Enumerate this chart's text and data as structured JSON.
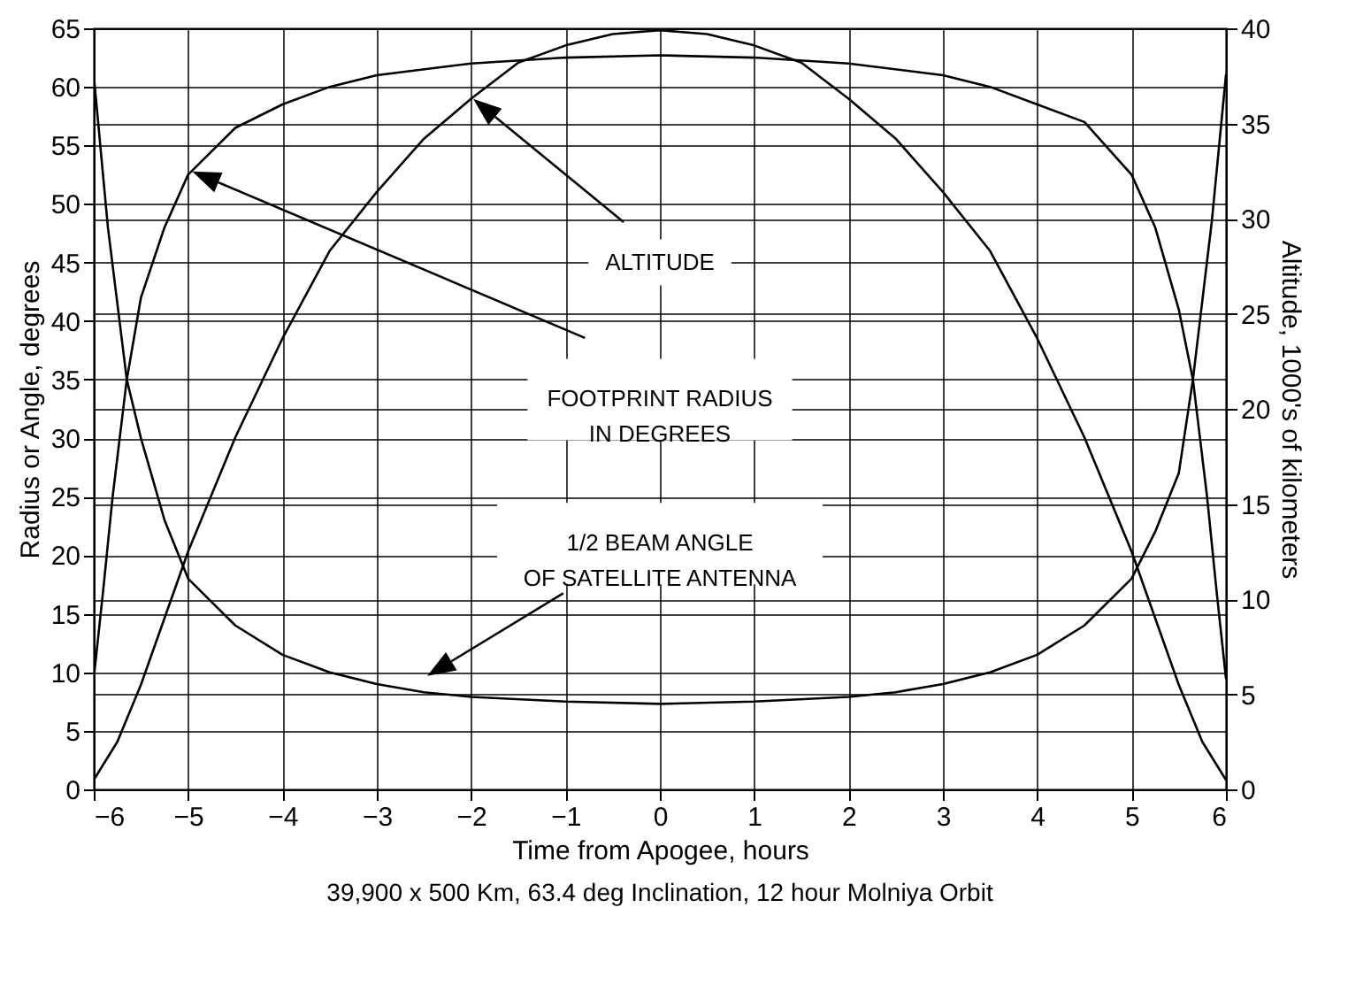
{
  "chart_data": {
    "type": "line",
    "xlabel": "Time from Apogee, hours",
    "ylabel": "Radius or Angle, degrees",
    "y2label": "Altitude, 1000's of kilometers",
    "xlim": [
      -6,
      6
    ],
    "xticks": [
      -6,
      -5,
      -4,
      -3,
      -2,
      -1,
      0,
      1,
      2,
      3,
      4,
      5,
      6
    ],
    "ylim": [
      0,
      65
    ],
    "yticks": [
      0,
      5,
      10,
      15,
      20,
      25,
      30,
      35,
      40,
      45,
      50,
      55,
      60,
      65
    ],
    "y2lim": [
      0,
      40
    ],
    "y2ticks": [
      0,
      5,
      10,
      15,
      20,
      25,
      30,
      35,
      40
    ],
    "grid": true,
    "legend": false,
    "marker": "none",
    "line_style": "solid",
    "series": [
      {
        "color": "#000000",
        "axis": "y2",
        "x": [
          -6,
          -5.75,
          -5.5,
          -5.25,
          -5,
          -4.5,
          -4,
          -3.5,
          -3,
          -2.5,
          -2,
          -1.5,
          -1,
          -0.5,
          0,
          0.5,
          1,
          1.5,
          2,
          2.5,
          3,
          3.5,
          4,
          4.5,
          5,
          5.25,
          5.5,
          5.75,
          6
        ],
        "values": [
          0.5,
          2.5,
          5.5,
          9,
          12.5,
          18.5,
          23.7,
          28.3,
          31.4,
          34.2,
          36.3,
          38.2,
          39.1,
          39.7,
          39.9,
          39.7,
          39.1,
          38.2,
          36.3,
          34.2,
          31.4,
          28.3,
          23.7,
          18.5,
          12.5,
          9,
          5.5,
          2.5,
          0.5
        ]
      },
      {
        "color": "#000000",
        "axis": "y",
        "x": [
          -6,
          -5.9,
          -5.8,
          -5.65,
          -5.5,
          -5.25,
          -5,
          -4.5,
          -4,
          -3.5,
          -3,
          -2,
          -1,
          0,
          1,
          2,
          3,
          3.5,
          4,
          4.5,
          5,
          5.25,
          5.5,
          5.65,
          5.8,
          5.9,
          6
        ],
        "values": [
          9.5,
          17,
          25,
          35,
          42,
          48,
          52.5,
          56.5,
          58.5,
          60,
          61,
          62,
          62.5,
          62.7,
          62.5,
          62,
          61,
          60,
          58.5,
          57,
          52.5,
          48,
          41,
          35,
          25,
          17,
          9.5
        ]
      },
      {
        "color": "#000000",
        "axis": "y",
        "x": [
          -6,
          -5.85,
          -5.65,
          -5.5,
          -5.25,
          -5,
          -4.5,
          -4,
          -3.5,
          -3,
          -2.5,
          -2,
          -1,
          0,
          1,
          2,
          2.5,
          3,
          3.5,
          4,
          4.5,
          5,
          5.25,
          5.5,
          5.65,
          5.85,
          6
        ],
        "values": [
          61,
          48,
          35,
          30,
          23,
          18,
          14,
          11.5,
          10,
          9,
          8.3,
          7.9,
          7.5,
          7.3,
          7.5,
          7.9,
          8.3,
          9,
          10,
          11.5,
          14,
          18,
          22,
          27,
          35,
          48.5,
          61
        ]
      }
    ],
    "annotations": [
      "ALTITUDE",
      "FOOTPRINT RADIUS\nIN DEGREES",
      "1/2 BEAM ANGLE\nOF SATELLITE ANTENNA",
      "39,900 x 500 Km, 63.4 deg Inclination, 12 hour Molniya Orbit"
    ]
  }
}
